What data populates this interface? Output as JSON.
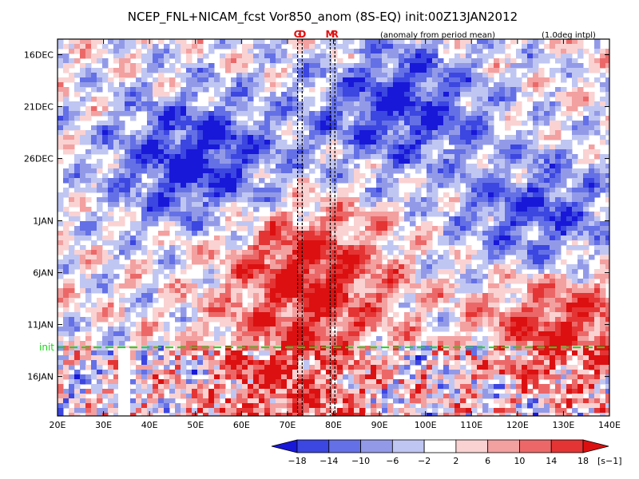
{
  "chart_data": {
    "type": "heatmap",
    "title": "NCEP_FNL+NICAM_fcst Vor850_anom (8S-EQ) init:00Z13JAN2012",
    "subtitle_left": "(anomaly from period mean)",
    "subtitle_right": "(1.0deg intpl)",
    "x_axis": {
      "range": [
        20,
        140
      ],
      "ticks": [
        20,
        30,
        40,
        50,
        60,
        70,
        80,
        90,
        100,
        110,
        120,
        130,
        140
      ],
      "tick_labels": [
        "20E",
        "30E",
        "40E",
        "50E",
        "60E",
        "70E",
        "80E",
        "90E",
        "100E",
        "110E",
        "120E",
        "130E",
        "140E"
      ]
    },
    "y_axis": {
      "ticks": [
        {
          "label": "16DEC",
          "day": 0
        },
        {
          "label": "21DEC",
          "day": 5
        },
        {
          "label": "26DEC",
          "day": 10
        },
        {
          "label": "1JAN",
          "day": 16
        },
        {
          "label": "6JAN",
          "day": 21
        },
        {
          "label": "11JAN",
          "day": 26
        },
        {
          "label": "16JAN",
          "day": 31
        }
      ],
      "range_days": [
        -1.5,
        34.8
      ],
      "orientation": "time increases downward"
    },
    "markers": [
      {
        "label": "G",
        "lon": 72.2
      },
      {
        "label": "D",
        "lon": 73.2
      },
      {
        "label": "M",
        "lon": 79.3
      },
      {
        "label": "R",
        "lon": 80.3
      }
    ],
    "init_line": {
      "label": "init",
      "day": 28.2,
      "color": "#19d919"
    },
    "colorbar": {
      "levels": [
        -18,
        -14,
        -10,
        -6,
        -2,
        2,
        6,
        10,
        14,
        18
      ],
      "level_labels": [
        "−18",
        "−14",
        "−10",
        "−6",
        "−2",
        "2",
        "6",
        "10",
        "14",
        "18"
      ],
      "colors": [
        "#1818d8",
        "#3c46e0",
        "#6470e6",
        "#929ae8",
        "#c0c6f2",
        "#ffffff",
        "#fad2d2",
        "#f3a0a0",
        "#ec6868",
        "#e43434",
        "#dc1010"
      ],
      "unit": "[s−1]"
    },
    "field_regions": [
      {
        "sign": "negative",
        "intensity": 0.9,
        "lon": 50,
        "day": 10,
        "note": "blue vortex band 40E-75E late Dec"
      },
      {
        "sign": "negative",
        "intensity": 0.8,
        "lon": 95,
        "day": 5,
        "note": "blue band upper center"
      },
      {
        "sign": "negative",
        "intensity": 0.7,
        "lon": 125,
        "day": 16,
        "note": "blue area east"
      },
      {
        "sign": "positive",
        "intensity": 0.9,
        "lon": 75,
        "day": 21,
        "note": "red band early Jan"
      },
      {
        "sign": "positive",
        "intensity": 0.8,
        "lon": 130,
        "day": 26,
        "note": "red area east mid Jan"
      },
      {
        "sign": "positive",
        "intensity": 0.7,
        "lon": 70,
        "day": 32,
        "note": "red forecast region"
      }
    ]
  }
}
